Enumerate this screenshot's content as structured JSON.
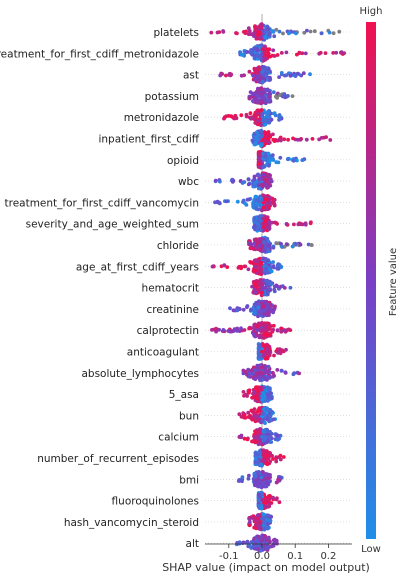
{
  "chart_data": {
    "type": "scatter",
    "subtype": "shap-beeswarm",
    "title": "",
    "xlabel": "SHAP value (impact on model output)",
    "ylabel": "",
    "xlim": [
      -0.19,
      0.27
    ],
    "x_ticks": [
      "-0.1",
      "0.0",
      "0.1",
      "0.2"
    ],
    "x_tick_values": [
      -0.1,
      0.0,
      0.1,
      0.2
    ],
    "colorbar": {
      "label": "Feature value",
      "high_label": "High",
      "low_label": "Low",
      "low_color": "#1f8fe8",
      "mid_color": "#7a3fc4",
      "high_color": "#f0114f"
    },
    "grid": false,
    "features": [
      {
        "name": "platelets",
        "min": -0.16,
        "max": 0.26,
        "neg": 0.8,
        "pos": 0.2,
        "has_gray": true
      },
      {
        "name": "treatment_for_first_cdiff_metronidazole",
        "min": -0.07,
        "max": 0.26,
        "neg": 0.2,
        "pos": 0.85
      },
      {
        "name": "ast",
        "min": -0.13,
        "max": 0.16,
        "neg": 0.75,
        "pos": 0.3
      },
      {
        "name": "potassium",
        "min": -0.04,
        "max": 0.1,
        "neg": 0.6,
        "pos": 0.4,
        "has_gray": true
      },
      {
        "name": "metronidazole",
        "min": -0.12,
        "max": 0.06,
        "neg": 0.9,
        "pos": 0.2
      },
      {
        "name": "inpatient_first_cdiff",
        "min": -0.03,
        "max": 0.21,
        "neg": 0.2,
        "pos": 0.9
      },
      {
        "name": "opioid",
        "min": -0.01,
        "max": 0.13,
        "neg": 0.8,
        "pos": 0.15
      },
      {
        "name": "wbc",
        "min": -0.14,
        "max": 0.03,
        "neg": 0.3,
        "pos": 0.7
      },
      {
        "name": "treatment_for_first_cdiff_vancomycin",
        "min": -0.15,
        "max": 0.04,
        "neg": 0.15,
        "pos": 0.85
      },
      {
        "name": "severity_and_age_weighted_sum",
        "min": -0.03,
        "max": 0.15,
        "neg": 0.2,
        "pos": 0.85
      },
      {
        "name": "chloride",
        "min": -0.05,
        "max": 0.15,
        "neg": 0.7,
        "pos": 0.3,
        "has_gray": true
      },
      {
        "name": "age_at_first_cdiff_years",
        "min": -0.15,
        "max": 0.06,
        "neg": 0.9,
        "pos": 0.2
      },
      {
        "name": "hematocrit",
        "min": -0.03,
        "max": 0.09,
        "neg": 0.8,
        "pos": 0.4
      },
      {
        "name": "creatinine",
        "min": -0.1,
        "max": 0.04,
        "neg": 0.3,
        "pos": 0.6
      },
      {
        "name": "calprotectin",
        "min": -0.16,
        "max": 0.09,
        "neg": 0.7,
        "pos": 0.85
      },
      {
        "name": "anticoagulant",
        "min": -0.01,
        "max": 0.09,
        "neg": 0.15,
        "pos": 0.9
      },
      {
        "name": "absolute_lymphocytes",
        "min": -0.06,
        "max": 0.12,
        "neg": 0.6,
        "pos": 0.5
      },
      {
        "name": "5_asa",
        "min": -0.07,
        "max": 0.03,
        "neg": 0.9,
        "pos": 0.2
      },
      {
        "name": "bun",
        "min": -0.07,
        "max": 0.04,
        "neg": 0.8,
        "pos": 0.2
      },
      {
        "name": "calcium",
        "min": -0.08,
        "max": 0.06,
        "neg": 0.85,
        "pos": 0.3
      },
      {
        "name": "number_of_recurrent_episodes",
        "min": -0.02,
        "max": 0.07,
        "neg": 0.2,
        "pos": 0.9
      },
      {
        "name": "bmi",
        "min": -0.07,
        "max": 0.06,
        "neg": 0.3,
        "pos": 0.5
      },
      {
        "name": "fluoroquinolones",
        "min": -0.01,
        "max": 0.07,
        "neg": 0.2,
        "pos": 0.9
      },
      {
        "name": "hash_vancomycin_steroid",
        "min": -0.04,
        "max": 0.03,
        "neg": 0.8,
        "pos": 0.2
      },
      {
        "name": "alt",
        "min": -0.08,
        "max": 0.05,
        "neg": 0.4,
        "pos": 0.5
      }
    ]
  }
}
